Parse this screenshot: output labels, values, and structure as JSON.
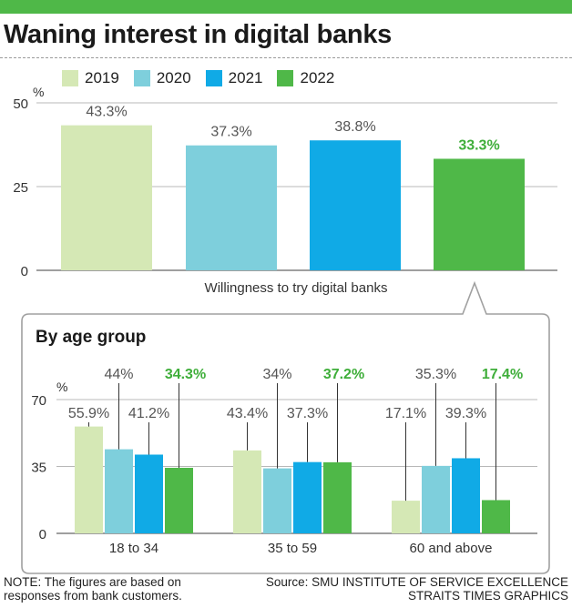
{
  "title": "Waning interest in digital banks",
  "colors": {
    "2019": "#d5e8b5",
    "2020": "#7ecfdc",
    "2021": "#10aae6",
    "2022": "#4fb848",
    "highlight_text": "#3fae3a"
  },
  "legend": [
    {
      "label": "2019",
      "color": "#d5e8b5"
    },
    {
      "label": "2020",
      "color": "#7ecfdc"
    },
    {
      "label": "2021",
      "color": "#10aae6"
    },
    {
      "label": "2022",
      "color": "#4fb848"
    }
  ],
  "chart_data": [
    {
      "type": "bar",
      "title": "Willingness to try digital banks",
      "ylabel": "%",
      "ylim": [
        0,
        50
      ],
      "yticks": [
        0,
        25,
        50
      ],
      "categories": [
        "Willingness to try digital banks"
      ],
      "series": [
        {
          "name": "2019",
          "values": [
            43.3
          ],
          "labels": [
            "43.3%"
          ]
        },
        {
          "name": "2020",
          "values": [
            37.3
          ],
          "labels": [
            "37.3%"
          ]
        },
        {
          "name": "2021",
          "values": [
            38.8
          ],
          "labels": [
            "38.8%"
          ]
        },
        {
          "name": "2022",
          "values": [
            33.3
          ],
          "labels": [
            "33.3%"
          ]
        }
      ]
    },
    {
      "type": "bar",
      "title": "By age group",
      "ylabel": "%",
      "ylim": [
        0,
        70
      ],
      "yticks": [
        0,
        35,
        70
      ],
      "categories": [
        "18 to 34",
        "35 to 59",
        "60 and above"
      ],
      "series": [
        {
          "name": "2019",
          "values": [
            55.9,
            43.4,
            17.1
          ],
          "labels": [
            "55.9%",
            "43.4%",
            "17.1%"
          ]
        },
        {
          "name": "2020",
          "values": [
            44,
            34,
            35.3
          ],
          "labels": [
            "44%",
            "34%",
            "35.3%"
          ]
        },
        {
          "name": "2021",
          "values": [
            41.2,
            37.3,
            39.3
          ],
          "labels": [
            "41.2%",
            "37.3%",
            "39.3%"
          ]
        },
        {
          "name": "2022",
          "values": [
            34.3,
            37.2,
            17.4
          ],
          "labels": [
            "34.3%",
            "37.2%",
            "17.4%"
          ]
        }
      ]
    }
  ],
  "note": "NOTE: The figures are based on responses from bank customers.",
  "source_line1": "Source: SMU INSTITUTE OF SERVICE EXCELLENCE",
  "source_line2": "STRAITS TIMES GRAPHICS"
}
